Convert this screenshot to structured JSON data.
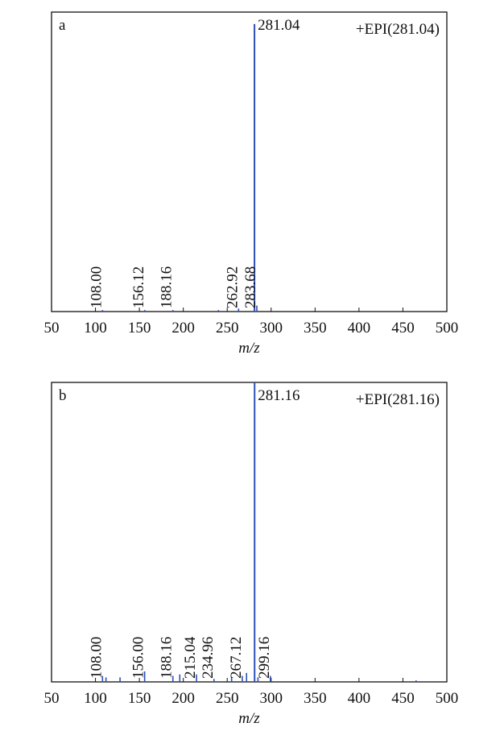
{
  "chart_data": [
    {
      "type": "stem",
      "panel_label": "a",
      "annotation": "+EPI(281.04)",
      "xlabel": "m/z",
      "color": "#2b4fb5",
      "x": [
        108.0,
        156.12,
        188.16,
        240,
        262.92,
        281.04,
        283.68
      ],
      "values": [
        0.5,
        0.5,
        0.5,
        0.5,
        1,
        96,
        2
      ],
      "peak_labels": [
        "108.00",
        "156.12",
        "188.16",
        null,
        "262.92",
        "281.04",
        "283.68"
      ],
      "xlim": [
        50,
        500
      ],
      "xticks": [
        50,
        100,
        150,
        200,
        250,
        300,
        350,
        400,
        450,
        500
      ],
      "ylim": [
        0,
        100
      ]
    },
    {
      "type": "stem",
      "panel_label": "b",
      "annotation": "+EPI(281.16)",
      "xlabel": "m/z",
      "color": "#2b4fb5",
      "x": [
        108.0,
        112,
        128,
        156.0,
        188.16,
        196,
        215.04,
        234.96,
        255,
        267.12,
        272,
        281.16,
        285,
        299.16,
        465
      ],
      "values": [
        2,
        1.5,
        1.5,
        3.5,
        2,
        2.5,
        2.5,
        1,
        1.5,
        2,
        3,
        100,
        1.5,
        2,
        0.5
      ],
      "peak_labels": [
        "108.00",
        null,
        null,
        "156.00",
        "188.16",
        null,
        "215.04",
        "234.96",
        null,
        "267.12",
        null,
        "281.16",
        null,
        "299.16",
        null
      ],
      "xlim": [
        50,
        500
      ],
      "xticks": [
        50,
        100,
        150,
        200,
        250,
        300,
        350,
        400,
        450,
        500
      ],
      "ylim": [
        0,
        100
      ]
    }
  ]
}
